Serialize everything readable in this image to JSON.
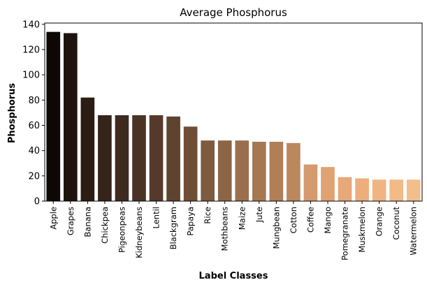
{
  "chart_data": {
    "type": "bar",
    "title": "Average Phosphorus",
    "xlabel": "Label Classes",
    "ylabel": "Phosphorus",
    "ylim": [
      0,
      141
    ],
    "yticks": [
      0,
      20,
      40,
      60,
      80,
      100,
      120,
      140
    ],
    "grid": false,
    "categories": [
      "Apple",
      "Grapes",
      "Banana",
      "Chickpea",
      "Pigeonpeas",
      "Kidneybeans",
      "Lentil",
      "Blackgram",
      "Papaya",
      "Rice",
      "Mothbeans",
      "Maize",
      "Jute",
      "Mungbean",
      "Cotton",
      "Coffee",
      "Mango",
      "Pomegranate",
      "Muskmelon",
      "Orange",
      "Coconut",
      "Watermelon"
    ],
    "values": [
      134,
      133,
      82,
      68,
      68,
      68,
      68,
      67,
      59,
      48,
      48,
      48,
      47,
      47,
      46,
      29,
      27,
      19,
      18,
      17,
      17,
      17
    ],
    "colors": [
      "#0d0805",
      "#1f140d",
      "#2b1d13",
      "#35241a",
      "#3f2a1f",
      "#4a3324",
      "#553a29",
      "#60432f",
      "#6f4e37",
      "#7e5a3f",
      "#8c6546",
      "#9a6f4d",
      "#a57852",
      "#b07f57",
      "#bb875c",
      "#d49a6e",
      "#dea273",
      "#e8a878",
      "#eeae7c",
      "#f0b482",
      "#f1ba87",
      "#f2bf8c"
    ]
  }
}
